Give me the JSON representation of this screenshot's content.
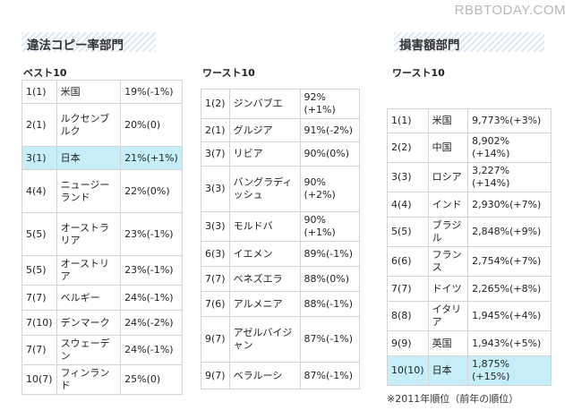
{
  "watermark": "RBBTODAY.COM",
  "sections": {
    "illegal_title": "違法コピー率部門",
    "damage_title": "損害額部門"
  },
  "best": {
    "label": "ベスト10",
    "rows": [
      {
        "rank": "1(1)",
        "country": "米国",
        "value": "19%(-1%)",
        "highlight": false
      },
      {
        "rank": "2(1)",
        "country": "ルクセンブルク",
        "value": "20%(0)",
        "highlight": false
      },
      {
        "rank": "3(1)",
        "country": "日本",
        "value": "21%(+1%)",
        "highlight": true
      },
      {
        "rank": "4(4)",
        "country": "ニュージーランド",
        "value": "22%(0%)",
        "highlight": false
      },
      {
        "rank": "5(5)",
        "country": "オーストラリア",
        "value": "23%(-1%)",
        "highlight": false
      },
      {
        "rank": "5(5)",
        "country": "オーストリア",
        "value": "23%(-1%)",
        "highlight": false
      },
      {
        "rank": "7(7)",
        "country": "ベルギー",
        "value": "24%(-1%)",
        "highlight": false
      },
      {
        "rank": "7(10)",
        "country": "デンマーク",
        "value": "24%(-2%)",
        "highlight": false
      },
      {
        "rank": "7(7)",
        "country": "スウェーデン",
        "value": "24%(-1%)",
        "highlight": false
      },
      {
        "rank": "10(7)",
        "country": "フィンランド",
        "value": "25%(0)",
        "highlight": false
      }
    ]
  },
  "worst": {
    "label": "ワースト10",
    "rows": [
      {
        "rank": "1(2)",
        "country": "ジンバブエ",
        "value": "92%(+1%)",
        "highlight": false
      },
      {
        "rank": "2(1)",
        "country": "グルジア",
        "value": "91%(-2%)",
        "highlight": false
      },
      {
        "rank": "3(7)",
        "country": "リビア",
        "value": "90%(0%)",
        "highlight": false
      },
      {
        "rank": "3(3)",
        "country": "バングラディッシュ",
        "value": "90%(+2%)",
        "highlight": false
      },
      {
        "rank": "3(3)",
        "country": "モルドバ",
        "value": "90%(+1%)",
        "highlight": false
      },
      {
        "rank": "6(3)",
        "country": "イエメン",
        "value": "89%(-1%)",
        "highlight": false
      },
      {
        "rank": "7(7)",
        "country": "ベネズエラ",
        "value": "88%(0%)",
        "highlight": false
      },
      {
        "rank": "7(6)",
        "country": "アルメニア",
        "value": "88%(-1%)",
        "highlight": false
      },
      {
        "rank": "9(7)",
        "country": "アゼルバイジャン",
        "value": "87%(-1%)",
        "highlight": false
      },
      {
        "rank": "9(7)",
        "country": "ベラルーシ",
        "value": "87%(-1%)",
        "highlight": false
      }
    ]
  },
  "damage": {
    "label": "ワースト10",
    "rows": [
      {
        "rank": "1(1)",
        "country": "米国",
        "value": "9,773%(+3%)",
        "highlight": false
      },
      {
        "rank": "2(2)",
        "country": "中国",
        "value": "8,902%(+14%)",
        "highlight": false
      },
      {
        "rank": "3(3)",
        "country": "ロシア",
        "value": "3,227%(+14%)",
        "highlight": false
      },
      {
        "rank": "4(4)",
        "country": "インド",
        "value": "2,930%(+7%)",
        "highlight": false
      },
      {
        "rank": "5(5)",
        "country": "ブラジル",
        "value": "2,848%(+9%)",
        "highlight": false
      },
      {
        "rank": "6(6)",
        "country": "フランス",
        "value": "2,754%(+7%)",
        "highlight": false
      },
      {
        "rank": "7(7)",
        "country": "ドイツ",
        "value": "2,265%(+8%)",
        "highlight": false
      },
      {
        "rank": "8(8)",
        "country": "イタリア",
        "value": "1,945%(+4%)",
        "highlight": false
      },
      {
        "rank": "9(9)",
        "country": "英国",
        "value": "1,943%(+5%)",
        "highlight": false
      },
      {
        "rank": "10(10)",
        "country": "日本",
        "value": "1,875%(+15%)",
        "highlight": true
      }
    ]
  },
  "footnote": "※2011年順位（前年の順位）",
  "colors": {
    "highlight": "#c6eef8",
    "title_stripe": "#dbe8f4"
  }
}
